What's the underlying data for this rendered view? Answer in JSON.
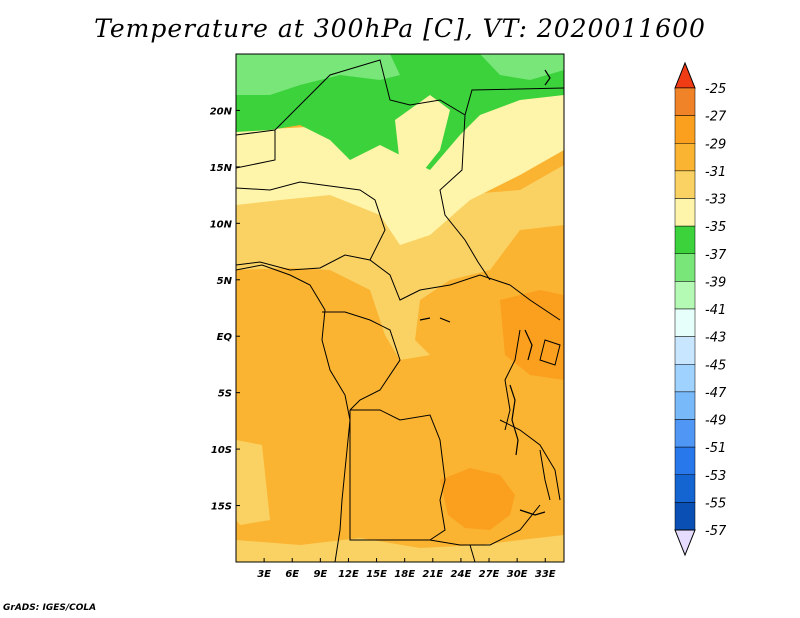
{
  "title": "Temperature at 300hPa [C], VT: 2020011600",
  "credit": "GrADS: IGES/COLA",
  "map": {
    "lon_range": [
      0,
      35
    ],
    "lat_range": [
      -20,
      25
    ],
    "lat_ticks": [
      {
        "value": 20,
        "label": "20N"
      },
      {
        "value": 15,
        "label": "15N"
      },
      {
        "value": 10,
        "label": "10N"
      },
      {
        "value": 5,
        "label": "5N"
      },
      {
        "value": 0,
        "label": "EQ"
      },
      {
        "value": -5,
        "label": "5S"
      },
      {
        "value": -10,
        "label": "10S"
      },
      {
        "value": -15,
        "label": "15S"
      }
    ],
    "lon_ticks": [
      {
        "value": 3,
        "label": "3E"
      },
      {
        "value": 6,
        "label": "6E"
      },
      {
        "value": 9,
        "label": "9E"
      },
      {
        "value": 12,
        "label": "12E"
      },
      {
        "value": 15,
        "label": "15E"
      },
      {
        "value": 18,
        "label": "18E"
      },
      {
        "value": 21,
        "label": "21E"
      },
      {
        "value": 24,
        "label": "24E"
      },
      {
        "value": 27,
        "label": "27E"
      },
      {
        "value": 30,
        "label": "30E"
      },
      {
        "value": 33,
        "label": "33E"
      }
    ]
  },
  "colorbar": {
    "levels": [
      -25,
      -27,
      -29,
      -31,
      -33,
      -35,
      -37,
      -39,
      -41,
      -43,
      -45,
      -47,
      -49,
      -51,
      -53,
      -55,
      -57
    ],
    "colors": [
      "#f08228",
      "#faa01e",
      "#fab432",
      "#fad264",
      "#fff5aa",
      "#3cd23c",
      "#78e678",
      "#b4fab4",
      "#e6fffa",
      "#c8e6ff",
      "#a0d2ff",
      "#78b9fa",
      "#5096f5",
      "#2878eb",
      "#1464d2",
      "#0a50b4"
    ],
    "top_color": "#f03c14",
    "bottom_color": "#0a147a",
    "top_end_color": "#e6dcff"
  }
}
